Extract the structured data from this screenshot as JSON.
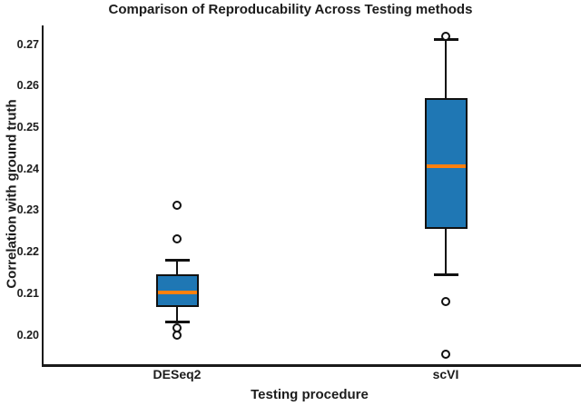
{
  "chart_data": {
    "type": "boxplot",
    "title": "Comparison of Reproducability Across Testing methods",
    "xlabel": "Testing procedure",
    "ylabel": "Correlation with ground truth",
    "categories": [
      "DESeq2",
      "scVI"
    ],
    "ylim": [
      0.1927,
      0.2745
    ],
    "yticks": [
      0.2,
      0.21,
      0.22,
      0.23,
      0.24,
      0.25,
      0.26,
      0.27
    ],
    "ytick_labels": [
      "0.20",
      "0.21",
      "0.22",
      "0.23",
      "0.24",
      "0.25",
      "0.26",
      "0.27"
    ],
    "grid": false,
    "legend": null,
    "colors": {
      "box_fill": "#1f77b4",
      "box_edge": "#111111",
      "median": "#ff800e",
      "whisker": "#111111",
      "flier_edge": "#111111",
      "background": "#ffffff"
    },
    "series": [
      {
        "name": "DESeq2",
        "whisker_low": 0.2031,
        "q1": 0.2067,
        "median": 0.2101,
        "q3": 0.2145,
        "whisker_high": 0.218,
        "outliers": [
          0.2312,
          0.2231,
          0.2016,
          0.2
        ]
      },
      {
        "name": "scVI",
        "whisker_low": 0.2145,
        "q1": 0.2255,
        "median": 0.2405,
        "q3": 0.257,
        "whisker_high": 0.2712,
        "outliers": [
          0.2718,
          0.208,
          0.1953
        ]
      }
    ]
  }
}
